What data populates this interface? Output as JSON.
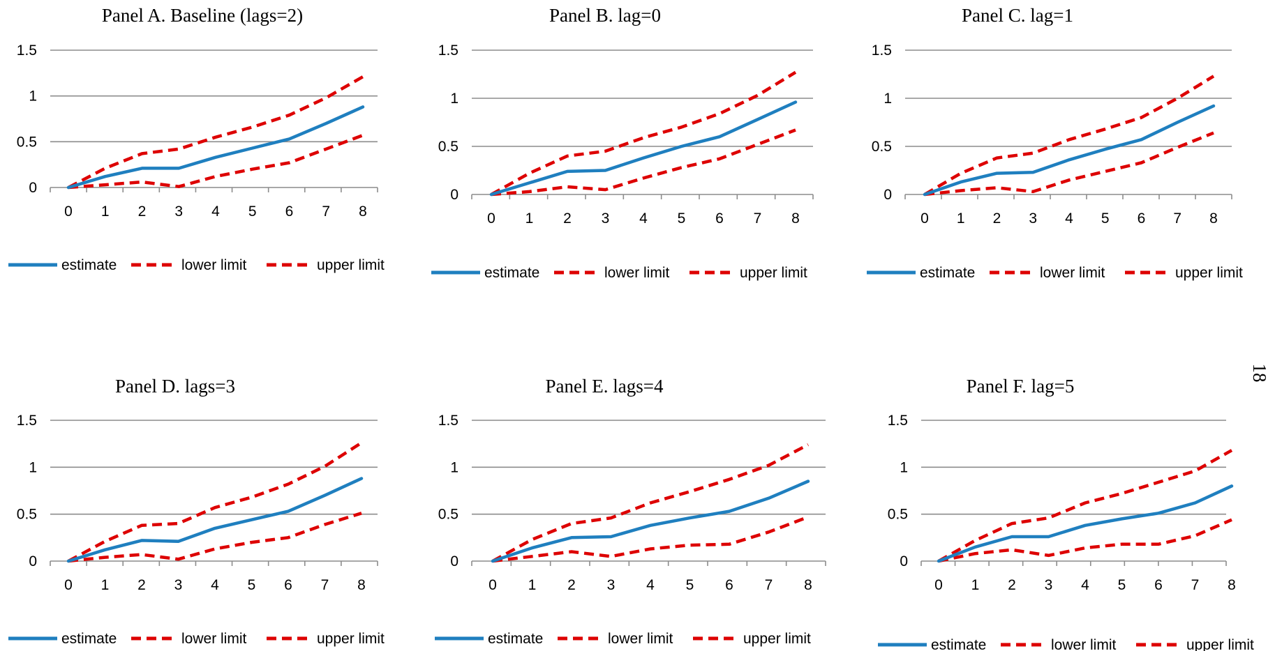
{
  "colors": {
    "estimate": "#1f7fbf",
    "limits": "#dd0000"
  },
  "legend": {
    "estimate": "estimate",
    "lower": "lower limit",
    "upper": "upper limit"
  },
  "page_number": "18",
  "chart_data": [
    {
      "type": "line",
      "title": "Panel A. Baseline (lags=2)",
      "x": [
        0,
        1,
        2,
        3,
        4,
        5,
        6,
        7,
        8
      ],
      "ylim": [
        0,
        1.5
      ],
      "yticks": [
        "0",
        "0.5",
        "1",
        "1.5"
      ],
      "grid": true,
      "legend_position": "bottom",
      "series": [
        {
          "name": "estimate",
          "values": [
            0,
            0.12,
            0.21,
            0.21,
            0.33,
            0.43,
            0.53,
            0.7,
            0.88
          ]
        },
        {
          "name": "lower limit",
          "values": [
            0,
            0.03,
            0.06,
            0.01,
            0.12,
            0.2,
            0.27,
            0.42,
            0.57
          ]
        },
        {
          "name": "upper limit",
          "values": [
            0,
            0.21,
            0.37,
            0.42,
            0.55,
            0.66,
            0.79,
            0.98,
            1.21
          ]
        }
      ]
    },
    {
      "type": "line",
      "title": "Panel B. lag=0",
      "x": [
        0,
        1,
        2,
        3,
        4,
        5,
        6,
        7,
        8
      ],
      "ylim": [
        0,
        1.5
      ],
      "yticks": [
        "0",
        "0.5",
        "1",
        "1.5"
      ],
      "grid": true,
      "legend_position": "bottom",
      "series": [
        {
          "name": "estimate",
          "values": [
            0,
            0.12,
            0.24,
            0.25,
            0.38,
            0.5,
            0.6,
            0.78,
            0.96
          ]
        },
        {
          "name": "lower limit",
          "values": [
            0,
            0.03,
            0.08,
            0.05,
            0.17,
            0.28,
            0.37,
            0.52,
            0.67
          ]
        },
        {
          "name": "upper limit",
          "values": [
            0,
            0.22,
            0.4,
            0.45,
            0.59,
            0.7,
            0.84,
            1.03,
            1.27
          ]
        }
      ]
    },
    {
      "type": "line",
      "title": "Panel C. lag=1",
      "x": [
        0,
        1,
        2,
        3,
        4,
        5,
        6,
        7,
        8
      ],
      "ylim": [
        0,
        1.5
      ],
      "yticks": [
        "0",
        "0.5",
        "1",
        "1.5"
      ],
      "grid": true,
      "legend_position": "bottom",
      "series": [
        {
          "name": "estimate",
          "values": [
            0,
            0.13,
            0.22,
            0.23,
            0.36,
            0.47,
            0.57,
            0.75,
            0.92
          ]
        },
        {
          "name": "lower limit",
          "values": [
            0,
            0.04,
            0.07,
            0.03,
            0.15,
            0.24,
            0.33,
            0.49,
            0.64
          ]
        },
        {
          "name": "upper limit",
          "values": [
            0,
            0.22,
            0.38,
            0.43,
            0.57,
            0.68,
            0.8,
            1.0,
            1.23
          ]
        }
      ]
    },
    {
      "type": "line",
      "title": "Panel D. lags=3",
      "x": [
        0,
        1,
        2,
        3,
        4,
        5,
        6,
        7,
        8
      ],
      "ylim": [
        0,
        1.5
      ],
      "yticks": [
        "0",
        "0.5",
        "1",
        "1.5"
      ],
      "grid": true,
      "legend_position": "bottom",
      "series": [
        {
          "name": "estimate",
          "values": [
            0,
            0.12,
            0.22,
            0.21,
            0.35,
            0.44,
            0.53,
            0.7,
            0.88
          ]
        },
        {
          "name": "lower limit",
          "values": [
            0,
            0.04,
            0.07,
            0.02,
            0.13,
            0.2,
            0.25,
            0.39,
            0.51
          ]
        },
        {
          "name": "upper limit",
          "values": [
            0,
            0.21,
            0.38,
            0.4,
            0.57,
            0.68,
            0.82,
            1.01,
            1.26
          ]
        }
      ]
    },
    {
      "type": "line",
      "title": "Panel E. lags=4",
      "x": [
        0,
        1,
        2,
        3,
        4,
        5,
        6,
        7,
        8
      ],
      "ylim": [
        0,
        1.5
      ],
      "yticks": [
        "0",
        "0.5",
        "1",
        "1.5"
      ],
      "grid": true,
      "legend_position": "bottom",
      "series": [
        {
          "name": "estimate",
          "values": [
            0,
            0.14,
            0.25,
            0.26,
            0.38,
            0.46,
            0.53,
            0.67,
            0.85
          ]
        },
        {
          "name": "lower limit",
          "values": [
            0,
            0.05,
            0.1,
            0.05,
            0.13,
            0.17,
            0.18,
            0.31,
            0.47
          ]
        },
        {
          "name": "upper limit",
          "values": [
            0,
            0.23,
            0.4,
            0.46,
            0.62,
            0.74,
            0.87,
            1.02,
            1.24
          ]
        }
      ]
    },
    {
      "type": "line",
      "title": "Panel F. lag=5",
      "x": [
        0,
        1,
        2,
        3,
        4,
        5,
        6,
        7,
        8
      ],
      "ylim": [
        0,
        1.5
      ],
      "yticks": [
        "0",
        "0.5",
        "1",
        "1.5"
      ],
      "grid": true,
      "legend_position": "bottom",
      "series": [
        {
          "name": "estimate",
          "values": [
            0,
            0.15,
            0.26,
            0.26,
            0.38,
            0.45,
            0.51,
            0.62,
            0.8
          ]
        },
        {
          "name": "lower limit",
          "values": [
            0,
            0.08,
            0.12,
            0.06,
            0.14,
            0.18,
            0.18,
            0.27,
            0.44
          ]
        },
        {
          "name": "upper limit",
          "values": [
            0,
            0.22,
            0.4,
            0.46,
            0.62,
            0.72,
            0.84,
            0.96,
            1.18
          ]
        }
      ]
    }
  ]
}
